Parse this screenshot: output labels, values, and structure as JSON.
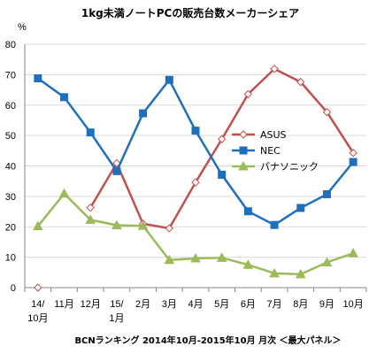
{
  "chart_data": {
    "type": "line",
    "title": "1kg未満ノートPCの販売台数メーカーシェア",
    "footnote": "BCNランキング 2014年10月-2015年10月 月次 ＜最大パネル＞",
    "ylabel_unit": "%",
    "ylim": [
      0,
      80
    ],
    "yticks": [
      0,
      10,
      20,
      30,
      40,
      50,
      60,
      70,
      80
    ],
    "categories": [
      [
        "14/",
        "10月"
      ],
      [
        "11月"
      ],
      [
        "12月"
      ],
      [
        "15/",
        "1月"
      ],
      [
        "2月"
      ],
      [
        "3月"
      ],
      [
        "4月"
      ],
      [
        "5月"
      ],
      [
        "6月"
      ],
      [
        "7月"
      ],
      [
        "8月"
      ],
      [
        "9月"
      ],
      [
        "10月"
      ]
    ],
    "series": [
      {
        "name": "ASUS",
        "color": "#c0504d",
        "marker": "diamond-open",
        "values": [
          0,
          null,
          26.3,
          40.9,
          21.0,
          19.5,
          34.6,
          48.8,
          63.6,
          71.9,
          67.6,
          57.7,
          44.3
        ]
      },
      {
        "name": "NEC",
        "color": "#1f6fbf",
        "marker": "square",
        "values": [
          68.8,
          62.6,
          51.0,
          38.3,
          57.3,
          68.3,
          51.6,
          37.1,
          25.1,
          20.6,
          26.2,
          30.7,
          41.3
        ]
      },
      {
        "name": "パナソニック",
        "color": "#9bbb59",
        "marker": "triangle",
        "values": [
          20.2,
          30.9,
          22.3,
          20.5,
          20.3,
          9.1,
          9.6,
          9.8,
          7.5,
          4.7,
          4.4,
          8.3,
          11.3
        ]
      }
    ],
    "grid": true,
    "legend_position": "right"
  }
}
